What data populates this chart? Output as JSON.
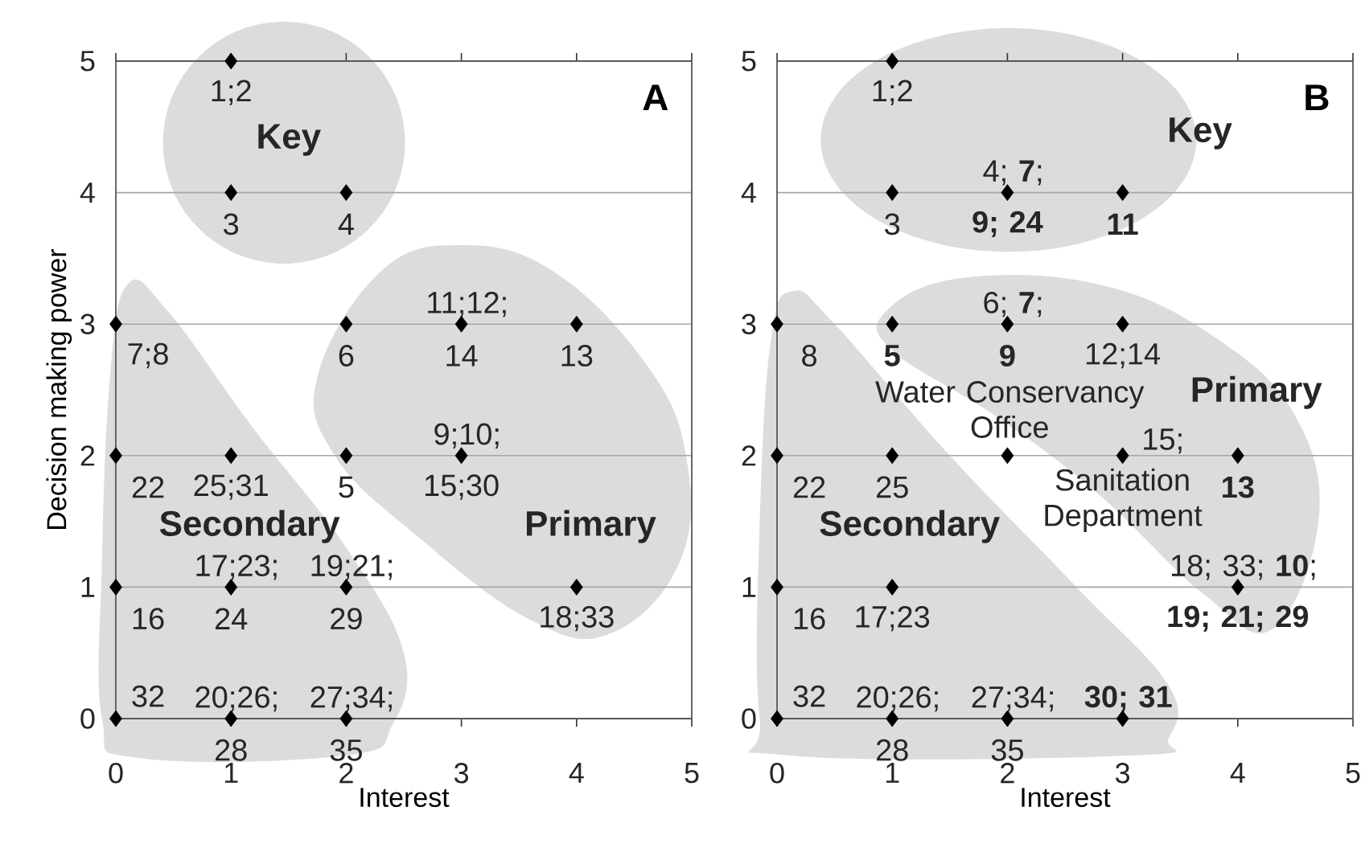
{
  "chart_data": [
    {
      "type": "scatter",
      "title": "A",
      "xlabel": "Interest",
      "ylabel": "Decision making power",
      "xlim": [
        0,
        5
      ],
      "ylim": [
        0,
        5
      ],
      "xticks": [
        0,
        1,
        2,
        3,
        4,
        5
      ],
      "yticks": [
        0,
        1,
        2,
        3,
        4,
        5
      ],
      "grid": "y",
      "marker": "diamond",
      "series": [
        {
          "color": "#000000",
          "x": [
            1,
            1,
            2,
            0,
            2,
            3,
            4,
            0,
            1,
            2,
            3,
            0,
            1,
            2,
            4,
            0,
            1,
            2
          ],
          "values": [
            5,
            4,
            4,
            3,
            3,
            3,
            3,
            2,
            2,
            2,
            2,
            1,
            1,
            1,
            1,
            0,
            0,
            0
          ]
        }
      ],
      "annotations": [
        {
          "text": "1;2",
          "x": 1,
          "y": 5
        },
        {
          "text": "3",
          "x": 1,
          "y": 4
        },
        {
          "text": "4",
          "x": 2,
          "y": 4
        },
        {
          "text": "7;8",
          "x": 0,
          "y": 3
        },
        {
          "text": "6",
          "x": 2,
          "y": 3
        },
        {
          "text": "11;12;",
          "x": 3,
          "y": 3
        },
        {
          "text": "14",
          "x": 3,
          "y": 3
        },
        {
          "text": "13",
          "x": 4,
          "y": 3
        },
        {
          "text": "9;10;",
          "x": 3,
          "y": 2
        },
        {
          "text": "15;30",
          "x": 3,
          "y": 2
        },
        {
          "text": "22",
          "x": 0,
          "y": 2
        },
        {
          "text": "25;31",
          "x": 1,
          "y": 2
        },
        {
          "text": "5",
          "x": 2,
          "y": 2
        },
        {
          "text": "17;23;",
          "x": 1,
          "y": 1
        },
        {
          "text": "19;21;",
          "x": 2,
          "y": 1
        },
        {
          "text": "16",
          "x": 0,
          "y": 1
        },
        {
          "text": "24",
          "x": 1,
          "y": 1
        },
        {
          "text": "29",
          "x": 2,
          "y": 1
        },
        {
          "text": "18;33",
          "x": 4,
          "y": 1
        },
        {
          "text": "32",
          "x": 0,
          "y": 0
        },
        {
          "text": "20;26;",
          "x": 1,
          "y": 0
        },
        {
          "text": "27;34;",
          "x": 2,
          "y": 0
        },
        {
          "text": "28",
          "x": 1,
          "y": 0
        },
        {
          "text": "35",
          "x": 2,
          "y": 0
        },
        "Key",
        "Secondary",
        "Primary"
      ]
    },
    {
      "type": "scatter",
      "title": "B",
      "xlabel": "Interest",
      "xlim": [
        0,
        5
      ],
      "ylim": [
        0,
        5
      ],
      "xticks": [
        0,
        1,
        2,
        3,
        4,
        5
      ],
      "yticks": [
        0,
        1,
        2,
        3,
        4,
        5
      ],
      "grid": "y",
      "marker": "diamond",
      "series": [
        {
          "color": "#000000",
          "x": [
            1,
            1,
            2,
            3,
            0,
            1,
            2,
            3,
            0,
            1,
            2,
            3,
            4,
            0,
            1,
            4,
            0,
            1,
            2,
            3
          ],
          "values": [
            5,
            4,
            4,
            4,
            3,
            3,
            3,
            3,
            2,
            2,
            2,
            2,
            2,
            1,
            1,
            1,
            0,
            0,
            0,
            0
          ]
        }
      ],
      "annotations": [
        {
          "text": "1;2",
          "x": 1,
          "y": 5
        },
        {
          "text": "4; **7**;",
          "x": 2,
          "y": 4
        },
        {
          "text": "3",
          "x": 1,
          "y": 4
        },
        {
          "text": "**9; 24**",
          "x": 2,
          "y": 4
        },
        {
          "text": "**11**",
          "x": 3,
          "y": 4
        },
        {
          "text": "6; **7**;",
          "x": 2,
          "y": 3
        },
        {
          "text": "8",
          "x": 0,
          "y": 3
        },
        {
          "text": "**5**",
          "x": 1,
          "y": 3
        },
        {
          "text": "**9**",
          "x": 2,
          "y": 3
        },
        {
          "text": "12;14",
          "x": 3,
          "y": 3
        },
        {
          "text": "Water Conservancy Office",
          "x": 2,
          "y": 2
        },
        {
          "text": "15;",
          "x": 3,
          "y": 2
        },
        {
          "text": "Sanitation Department",
          "x": 3,
          "y": 2
        },
        {
          "text": "**13**",
          "x": 4,
          "y": 2
        },
        {
          "text": "22",
          "x": 0,
          "y": 2
        },
        {
          "text": "25",
          "x": 1,
          "y": 2
        },
        {
          "text": "18; 33; **10**;",
          "x": 4,
          "y": 1
        },
        {
          "text": "**19; 21; 29**",
          "x": 4,
          "y": 1
        },
        {
          "text": "16",
          "x": 0,
          "y": 1
        },
        {
          "text": "17;23",
          "x": 1,
          "y": 1
        },
        {
          "text": "32",
          "x": 0,
          "y": 0
        },
        {
          "text": "20;26;",
          "x": 1,
          "y": 0
        },
        {
          "text": "27;34;",
          "x": 2,
          "y": 0
        },
        {
          "text": "**30; 31**",
          "x": 3,
          "y": 0
        },
        {
          "text": "28",
          "x": 1,
          "y": 0
        },
        {
          "text": "35",
          "x": 2,
          "y": 0
        },
        "Key",
        "Primary",
        "Secondary"
      ]
    }
  ]
}
